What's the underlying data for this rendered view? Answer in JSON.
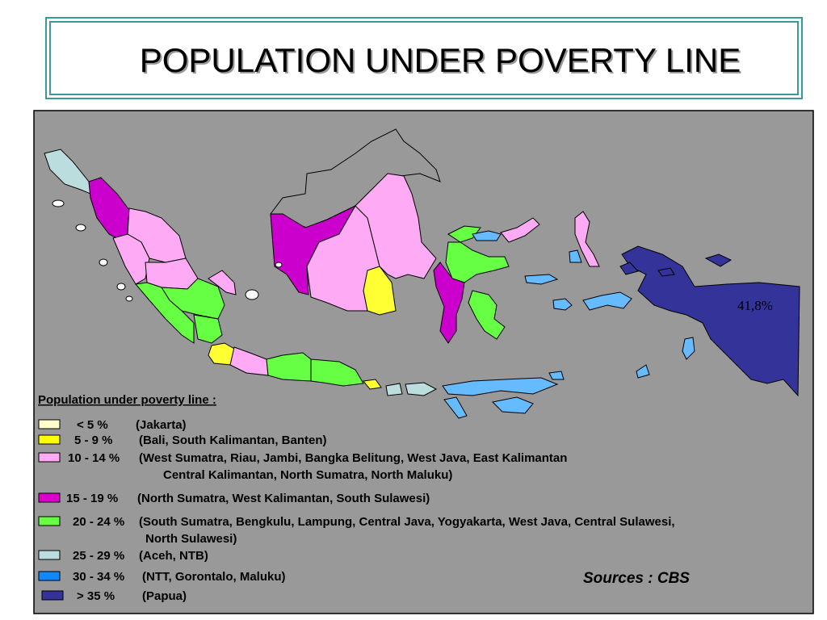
{
  "title": "POPULATION UNDER POVERTY LINE",
  "legend": {
    "title": "Population under poverty line :",
    "entries": [
      {
        "range": "< 5 %",
        "lines": [
          "(Jakarta)"
        ],
        "color": "#ffffcc"
      },
      {
        "range": "5 - 9 %",
        "lines": [
          "(Bali, South Kalimantan, Banten)"
        ],
        "color": "#ffff00"
      },
      {
        "range": "10 - 14 %",
        "lines": [
          "(West Sumatra, Riau, Jambi, Bangka Belitung, West Java, East Kalimantan",
          "Central Kalimantan, North Sumatra, North Maluku)"
        ],
        "color": "#ffaaf4"
      },
      {
        "range": "15 - 19 %",
        "lines": [
          "(North Sumatra, West Kalimantan, South Sulawesi)"
        ],
        "color": "#dd00cc"
      },
      {
        "range": "20 - 24 %",
        "lines": [
          "(South Sumatra, Bengkulu, Lampung, Central Java, Yogyakarta, West Java, Central Sulawesi,",
          "North Sulawesi)"
        ],
        "color": "#66ff44"
      },
      {
        "range": "25 - 29 %",
        "lines": [
          "(Aceh, NTB)"
        ],
        "color": "#bbdddd"
      },
      {
        "range": "30 - 34 %",
        "lines": [
          "(NTT, Gorontalo, Maluku)"
        ],
        "color": "#1188ff"
      },
      {
        "range": "> 35 %",
        "lines": [
          "(Papua)"
        ],
        "color": "#333399"
      }
    ]
  },
  "annotation": "41,8%",
  "source": "Sources : CBS"
}
